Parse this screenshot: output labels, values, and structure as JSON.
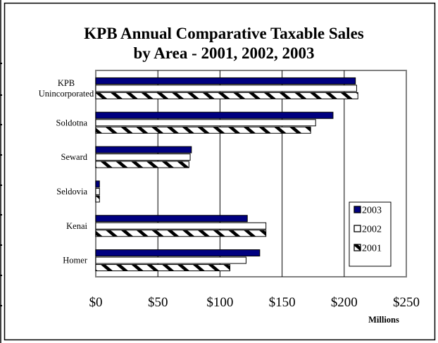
{
  "chart_data": {
    "type": "bar",
    "orientation": "horizontal",
    "title": "KPB Annual Comparative Taxable Sales",
    "subtitle": "by Area - 2001, 2002, 2003",
    "categories": [
      [
        "KPB",
        "Unincorporated"
      ],
      [
        "Soldotna"
      ],
      [
        "Seward"
      ],
      [
        "Seldovia"
      ],
      [
        "Kenai"
      ],
      [
        "Homer"
      ]
    ],
    "series": [
      {
        "name": "2003",
        "color": "#000080",
        "pattern": "solid",
        "values": [
          209,
          191,
          77,
          3,
          122,
          132
        ]
      },
      {
        "name": "2002",
        "color": "#ffffff",
        "pattern": "blank",
        "values": [
          210,
          177,
          76,
          3,
          137,
          121
        ]
      },
      {
        "name": "2001",
        "color": "#000000",
        "pattern": "diagonal",
        "values": [
          211,
          173,
          75,
          3,
          137,
          108
        ]
      }
    ],
    "xlim": [
      0,
      250
    ],
    "xticks": [
      "$0",
      "$50",
      "$100",
      "$150",
      "$200",
      "$250"
    ],
    "xunit": "Millions",
    "xlabel": "",
    "ylabel": "",
    "grid": true,
    "legend_position": "right"
  }
}
